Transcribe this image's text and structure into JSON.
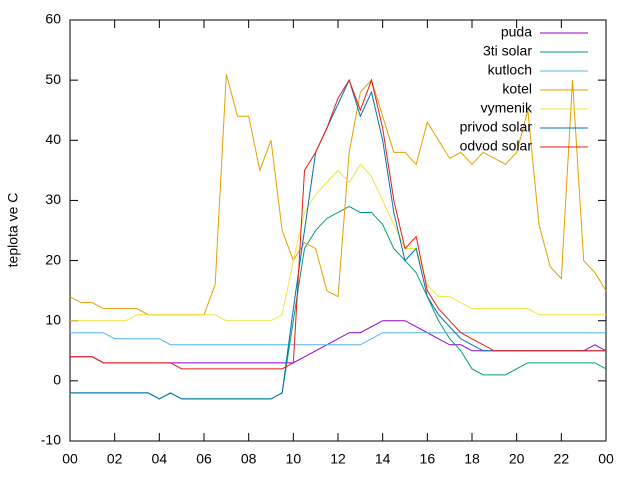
{
  "chart_data": {
    "type": "line",
    "ylabel": "teplota ve C",
    "x": [
      0,
      0.5,
      1,
      1.5,
      2,
      2.5,
      3,
      3.5,
      4,
      4.5,
      5,
      5.5,
      6,
      6.5,
      7,
      7.5,
      8,
      8.5,
      9,
      9.5,
      10,
      10.5,
      11,
      11.5,
      12,
      12.5,
      13,
      13.5,
      14,
      14.5,
      15,
      15.5,
      16,
      16.5,
      17,
      17.5,
      18,
      18.5,
      19,
      19.5,
      20,
      20.5,
      21,
      21.5,
      22,
      22.5,
      23,
      23.5,
      24
    ],
    "xlim": [
      0,
      24
    ],
    "xticks": [
      {
        "value": 0,
        "label": "00"
      },
      {
        "value": 2,
        "label": "02"
      },
      {
        "value": 4,
        "label": "04"
      },
      {
        "value": 6,
        "label": "06"
      },
      {
        "value": 8,
        "label": "08"
      },
      10,
      12,
      14,
      16,
      18,
      20,
      22,
      {
        "value": 24,
        "label": "00"
      }
    ],
    "ylim": [
      -10,
      60
    ],
    "yticks": [
      -10,
      0,
      10,
      20,
      30,
      40,
      50,
      60
    ],
    "legend": "top right",
    "series": [
      {
        "name": "puda",
        "color": "#9400d3",
        "values": [
          4,
          4,
          4,
          3,
          3,
          3,
          3,
          3,
          3,
          3,
          3,
          3,
          3,
          3,
          3,
          3,
          3,
          3,
          3,
          3,
          3,
          4,
          5,
          6,
          7,
          8,
          8,
          9,
          10,
          10,
          10,
          9,
          8,
          7,
          6,
          6,
          5,
          5,
          5,
          5,
          5,
          5,
          5,
          5,
          5,
          5,
          5,
          6,
          5
        ]
      },
      {
        "name": "3ti solar",
        "color": "#009e73",
        "values": [
          -2,
          -2,
          -2,
          -2,
          -2,
          -2,
          -2,
          -2,
          -3,
          -2,
          -3,
          -3,
          -3,
          -3,
          -3,
          -3,
          -3,
          -3,
          -3,
          -2,
          10,
          22,
          25,
          27,
          28,
          29,
          28,
          28,
          26,
          22,
          20,
          18,
          14,
          10,
          7,
          5,
          2,
          1,
          1,
          1,
          2,
          3,
          3,
          3,
          3,
          3,
          3,
          3,
          2
        ]
      },
      {
        "name": "kutloch",
        "color": "#56b4e9",
        "values": [
          8,
          8,
          8,
          8,
          7,
          7,
          7,
          7,
          7,
          6,
          6,
          6,
          6,
          6,
          6,
          6,
          6,
          6,
          6,
          6,
          6,
          6,
          6,
          6,
          6,
          6,
          6,
          7,
          8,
          8,
          8,
          8,
          8,
          8,
          8,
          8,
          8,
          8,
          8,
          8,
          8,
          8,
          8,
          8,
          8,
          8,
          8,
          8,
          8
        ]
      },
      {
        "name": "kotel",
        "color": "#e69f00",
        "values": [
          14,
          13,
          13,
          12,
          12,
          12,
          12,
          11,
          11,
          11,
          11,
          11,
          11,
          16,
          51,
          44,
          44,
          35,
          40,
          25,
          20,
          23,
          22,
          15,
          14,
          38,
          48,
          50,
          44,
          38,
          38,
          36,
          43,
          40,
          37,
          38,
          36,
          38,
          37,
          36,
          38,
          45,
          26,
          19,
          17,
          50,
          20,
          18,
          15
        ]
      },
      {
        "name": "vymenik",
        "color": "#f0e442",
        "values": [
          10,
          10,
          10,
          10,
          10,
          10,
          11,
          11,
          11,
          11,
          11,
          11,
          11,
          11,
          10,
          10,
          10,
          10,
          10,
          11,
          20,
          28,
          31,
          33,
          35,
          33,
          36,
          34,
          30,
          26,
          22,
          22,
          16,
          14,
          14,
          13,
          12,
          12,
          12,
          12,
          12,
          12,
          11,
          11,
          11,
          11,
          11,
          11,
          11
        ]
      },
      {
        "name": "privod solar",
        "color": "#0072b2",
        "values": [
          -2,
          -2,
          -2,
          -2,
          -2,
          -2,
          -2,
          -2,
          -3,
          -2,
          -3,
          -3,
          -3,
          -3,
          -3,
          -3,
          -3,
          -3,
          -3,
          -2,
          12,
          25,
          38,
          42,
          46,
          50,
          44,
          48,
          40,
          28,
          20,
          22,
          14,
          11,
          9,
          7,
          6,
          5,
          5,
          5,
          5,
          5,
          5,
          5,
          5,
          5,
          5,
          5,
          5
        ]
      },
      {
        "name": "odvod solar",
        "color": "#e51e10",
        "values": [
          4,
          4,
          4,
          3,
          3,
          3,
          3,
          3,
          3,
          3,
          2,
          2,
          2,
          2,
          2,
          2,
          2,
          2,
          2,
          2,
          3,
          35,
          38,
          42,
          47,
          50,
          45,
          50,
          42,
          30,
          22,
          24,
          15,
          12,
          10,
          8,
          7,
          6,
          5,
          5,
          5,
          5,
          5,
          5,
          5,
          5,
          5,
          5,
          5
        ]
      }
    ]
  }
}
